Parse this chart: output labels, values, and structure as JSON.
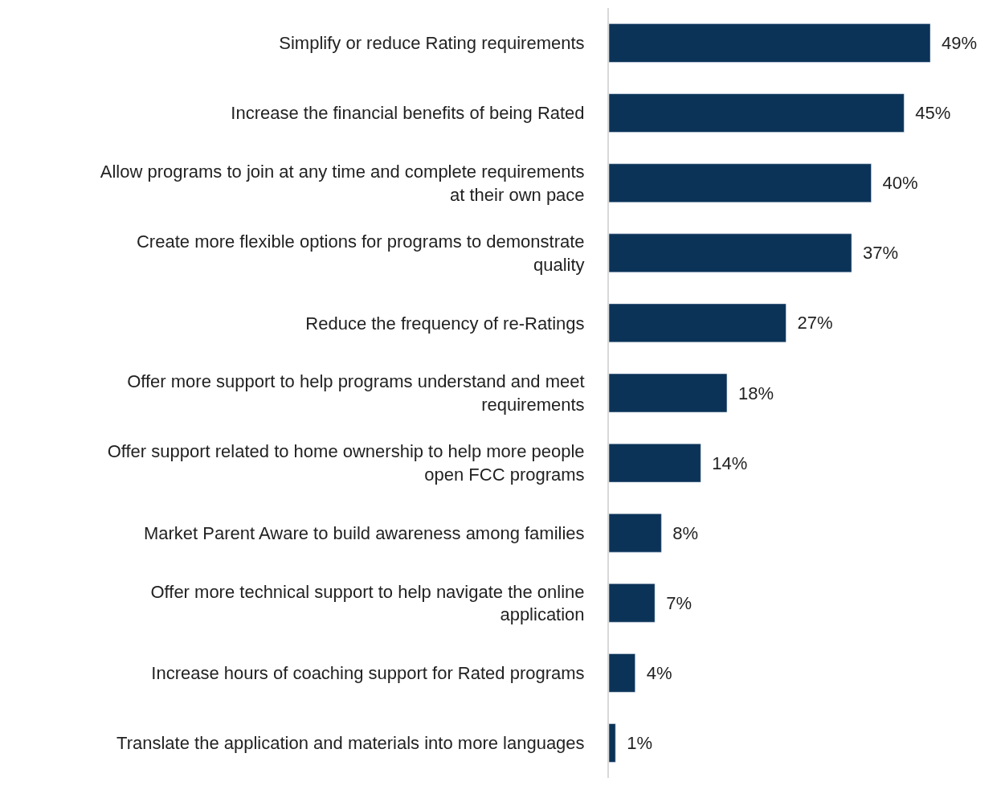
{
  "chart_data": {
    "type": "bar",
    "orientation": "horizontal",
    "categories": [
      "Simplify or reduce Rating requirements",
      "Increase the financial benefits of being Rated",
      "Allow programs to join at any time and complete requirements at their own pace",
      "Create more flexible options for programs to demonstrate quality",
      "Reduce the frequency of re-Ratings",
      "Offer more support to help programs understand and meet requirements",
      "Offer support related to home ownership to help more people open FCC programs",
      "Market Parent Aware to build awareness among families",
      "Offer more technical support to help navigate the online application",
      "Increase hours of coaching support for Rated programs",
      "Translate the application and materials into more languages"
    ],
    "values": [
      49,
      45,
      40,
      37,
      27,
      18,
      14,
      8,
      7,
      4,
      1
    ],
    "value_labels": [
      "49%",
      "45%",
      "40%",
      "37%",
      "27%",
      "18%",
      "14%",
      "8%",
      "7%",
      "4%",
      "1%"
    ],
    "color": "#0b3358",
    "legend": false
  }
}
